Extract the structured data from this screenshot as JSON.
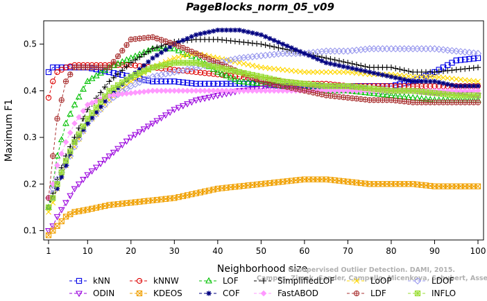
{
  "chart_data": {
    "type": "line",
    "title": "PageBlocks_norm_05_v09",
    "xlabel": "Neighborhood size",
    "ylabel": "Maximum F1",
    "xlim": [
      1,
      100
    ],
    "ylim": [
      0.08,
      0.55
    ],
    "x_ticks": [
      "1",
      "10",
      "20",
      "30",
      "40",
      "50",
      "60",
      "70",
      "80",
      "90",
      "100"
    ],
    "y_ticks": [
      "0.1",
      "0.2",
      "0.3",
      "0.4",
      "0.5"
    ],
    "grid": false,
    "legend_position": "bottom",
    "watermark_lines": [
      "Unsupervised Outlier Detection. DAMI, 2015.",
      "Campos, Zimek, Sander, Campello, Micenkova, Schubert, Assent, Houle"
    ],
    "x_knots": [
      1,
      2,
      3,
      5,
      7,
      10,
      15,
      20,
      25,
      30,
      35,
      40,
      45,
      50,
      55,
      60,
      65,
      70,
      75,
      80,
      85,
      90,
      95,
      100
    ],
    "series": [
      {
        "name": "kNN",
        "color": "#0000e6",
        "marker": "square",
        "linestyle": "dashed",
        "values": [
          0.44,
          0.45,
          0.45,
          0.45,
          0.45,
          0.45,
          0.44,
          0.43,
          0.42,
          0.42,
          0.415,
          0.415,
          0.415,
          0.415,
          0.41,
          0.41,
          0.41,
          0.41,
          0.41,
          0.41,
          0.42,
          0.44,
          0.465,
          0.47
        ]
      },
      {
        "name": "kNNW",
        "color": "#dd0000",
        "marker": "circle",
        "linestyle": "dashed",
        "values": [
          0.385,
          0.42,
          0.44,
          0.45,
          0.455,
          0.455,
          0.455,
          0.455,
          0.45,
          0.445,
          0.44,
          0.435,
          0.43,
          0.425,
          0.42,
          0.415,
          0.415,
          0.41,
          0.41,
          0.41,
          0.41,
          0.41,
          0.41,
          0.41
        ]
      },
      {
        "name": "LOF",
        "color": "#00c000",
        "marker": "triangle",
        "linestyle": "dashed",
        "values": [
          0.15,
          0.2,
          0.26,
          0.33,
          0.37,
          0.42,
          0.45,
          0.47,
          0.49,
          0.49,
          0.47,
          0.44,
          0.42,
          0.415,
          0.41,
          0.405,
          0.4,
          0.4,
          0.395,
          0.39,
          0.385,
          0.38,
          0.38,
          0.38
        ]
      },
      {
        "name": "SimplifiedLOF",
        "color": "#000000",
        "marker": "plus",
        "linestyle": "dashed",
        "values": [
          0.15,
          0.18,
          0.21,
          0.26,
          0.3,
          0.36,
          0.42,
          0.46,
          0.49,
          0.505,
          0.51,
          0.51,
          0.505,
          0.5,
          0.49,
          0.48,
          0.47,
          0.46,
          0.45,
          0.45,
          0.44,
          0.44,
          0.445,
          0.45
        ]
      },
      {
        "name": "LoOP",
        "color": "#ffd700",
        "marker": "x",
        "linestyle": "dashed",
        "values": [
          0.14,
          0.16,
          0.19,
          0.24,
          0.28,
          0.33,
          0.38,
          0.42,
          0.45,
          0.47,
          0.48,
          0.47,
          0.46,
          0.45,
          0.445,
          0.44,
          0.44,
          0.44,
          0.435,
          0.435,
          0.43,
          0.43,
          0.425,
          0.42
        ]
      },
      {
        "name": "LDOF",
        "color": "#9999ee",
        "marker": "diamond",
        "linestyle": "dashed",
        "values": [
          0.17,
          0.19,
          0.21,
          0.24,
          0.28,
          0.33,
          0.38,
          0.41,
          0.43,
          0.44,
          0.45,
          0.46,
          0.47,
          0.475,
          0.48,
          0.48,
          0.485,
          0.485,
          0.49,
          0.49,
          0.49,
          0.49,
          0.485,
          0.48
        ]
      },
      {
        "name": "ODIN",
        "color": "#9900dd",
        "marker": "triangle-down",
        "linestyle": "dashed",
        "values": [
          0.1,
          0.11,
          0.13,
          0.16,
          0.19,
          0.22,
          0.26,
          0.3,
          0.33,
          0.36,
          0.38,
          0.39,
          0.4,
          0.405,
          0.41,
          0.41,
          0.41,
          0.41,
          0.4,
          0.4,
          0.4,
          0.395,
          0.395,
          0.39
        ]
      },
      {
        "name": "KDEOS",
        "color": "#f0a000",
        "marker": "boxed-x",
        "linestyle": "dashed",
        "values": [
          0.09,
          0.1,
          0.11,
          0.13,
          0.14,
          0.145,
          0.155,
          0.16,
          0.165,
          0.17,
          0.18,
          0.19,
          0.195,
          0.2,
          0.205,
          0.21,
          0.21,
          0.205,
          0.2,
          0.2,
          0.2,
          0.195,
          0.195,
          0.195
        ]
      },
      {
        "name": "COF",
        "color": "#000080",
        "marker": "asterisk",
        "linestyle": "dashed",
        "values": [
          0.15,
          0.17,
          0.19,
          0.24,
          0.29,
          0.33,
          0.39,
          0.43,
          0.47,
          0.5,
          0.52,
          0.53,
          0.53,
          0.52,
          0.5,
          0.48,
          0.46,
          0.45,
          0.44,
          0.43,
          0.42,
          0.42,
          0.41,
          0.41
        ]
      },
      {
        "name": "FastABOD",
        "color": "#ff99ff",
        "marker": "diamond-filled",
        "linestyle": "dashed",
        "values": [
          0.17,
          0.2,
          0.24,
          0.29,
          0.33,
          0.37,
          0.39,
          0.395,
          0.4,
          0.4,
          0.4,
          0.4,
          0.4,
          0.4,
          0.4,
          0.4,
          0.4,
          0.4,
          0.4,
          0.4,
          0.4,
          0.4,
          0.4,
          0.4
        ]
      },
      {
        "name": "LDF",
        "color": "#aa3333",
        "marker": "circle-plus",
        "linestyle": "dashed",
        "values": [
          0.17,
          0.26,
          0.34,
          0.42,
          0.45,
          0.45,
          0.45,
          0.51,
          0.515,
          0.5,
          0.48,
          0.46,
          0.44,
          0.42,
          0.41,
          0.4,
          0.39,
          0.385,
          0.38,
          0.38,
          0.375,
          0.375,
          0.375,
          0.375
        ]
      },
      {
        "name": "INFLO",
        "color": "#99dd33",
        "marker": "square-star",
        "linestyle": "dashed",
        "values": [
          0.15,
          0.17,
          0.2,
          0.25,
          0.29,
          0.34,
          0.4,
          0.43,
          0.45,
          0.46,
          0.46,
          0.45,
          0.44,
          0.43,
          0.42,
          0.415,
          0.41,
          0.41,
          0.405,
          0.4,
          0.4,
          0.395,
          0.39,
          0.39
        ]
      }
    ],
    "legend_rows": [
      [
        "kNN",
        "kNNW",
        "LOF",
        "SimplifiedLOF",
        "LoOP",
        "LDOF"
      ],
      [
        "ODIN",
        "KDEOS",
        "COF",
        "FastABOD",
        "LDF",
        "INFLO"
      ]
    ]
  }
}
